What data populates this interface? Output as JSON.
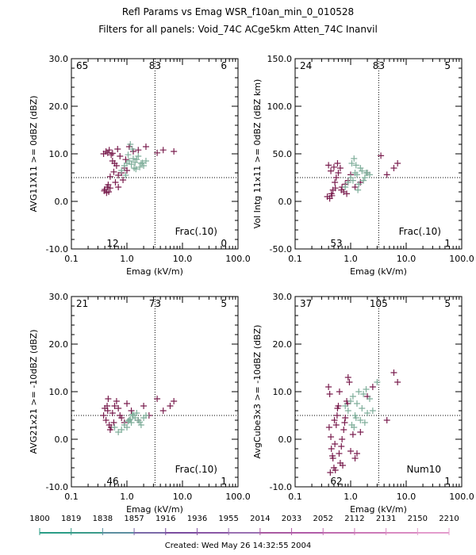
{
  "header": {
    "title": "Refl Params vs Emag   WSR_f10an_min_0_010528",
    "subtitle": "Filters for all panels:  Void_74C ACge5km Atten_74C Inanvil"
  },
  "footer": {
    "created": "Created: Wed May 26 14:32:55 2004"
  },
  "colors": {
    "early": "#7a1f4f",
    "late": "#7fae9a"
  },
  "timebar": {
    "ticks": [
      "1800",
      "1819",
      "1838",
      "1857",
      "1916",
      "1936",
      "1955",
      "2014",
      "2033",
      "2052",
      "2112",
      "2131",
      "2150",
      "2210"
    ],
    "colors": [
      "#2a9d86",
      "#3a9b8a",
      "#5c8fa0",
      "#7b6aa8",
      "#7b4da0",
      "#8a57a6",
      "#9a70b2",
      "#a95aa2",
      "#b15ca8",
      "#c06db0",
      "#cc7ab8",
      "#d98bc2",
      "#e39ccd"
    ]
  },
  "chart_data": [
    {
      "type": "scatter",
      "xlabel": "Emag (kV/m)",
      "ylabel": "AVG11X11 >= 0dBZ (dBZ)",
      "xscale": "log",
      "xlim": [
        0.1,
        100.0
      ],
      "ylim": [
        -10,
        30
      ],
      "xticks": [
        "0.1",
        "1.0",
        "10.0",
        "100.0"
      ],
      "yticks": [
        "-10.0",
        "0.0",
        "10.0",
        "20.0",
        "30.0"
      ],
      "ref_x": 3.2,
      "ref_y": 5,
      "quadrant_counts": {
        "top_left": "65",
        "top_mid": "83",
        "top_right": "6",
        "bottom_left": "12",
        "bottom_right": "0"
      },
      "label": "Frac(.10)",
      "series": [
        {
          "color": "early",
          "x": [
            0.38,
            0.42,
            0.45,
            0.48,
            0.52,
            0.55,
            0.4,
            0.44,
            0.47,
            0.5,
            0.62,
            0.7,
            0.8,
            0.9,
            1.1,
            1.3,
            1.6,
            0.58,
            0.65,
            0.75,
            0.6,
            0.7,
            0.85,
            1.0,
            0.39,
            0.43,
            0.46,
            0.5,
            0.55,
            0.68,
            0.95,
            2.2,
            3.5,
            4.5,
            7.0
          ],
          "y": [
            10,
            10.5,
            10.2,
            10.8,
            9.8,
            10.1,
            2.5,
            3.0,
            2.0,
            2.8,
            4.0,
            5.5,
            6.0,
            7.0,
            11.5,
            10.5,
            10.8,
            6.2,
            7.5,
            9.5,
            8.0,
            3.0,
            4.5,
            6.5,
            2.2,
            1.8,
            3.5,
            5.2,
            8.5,
            11.0,
            8.8,
            11.5,
            10.2,
            10.8,
            10.5
          ]
        },
        {
          "color": "late",
          "x": [
            0.9,
            1.0,
            1.1,
            1.2,
            1.3,
            1.4,
            1.5,
            1.6,
            1.8,
            2.0,
            2.2,
            0.8,
            0.95,
            1.05,
            1.15,
            1.25,
            1.7,
            1.9,
            1.35,
            1.45
          ],
          "y": [
            7.5,
            8.0,
            8.5,
            7.8,
            9.0,
            8.2,
            8.8,
            9.5,
            8.0,
            7.5,
            8.5,
            6.5,
            5.5,
            9.8,
            12.0,
            11.0,
            7.2,
            8.1,
            7.0,
            6.8
          ]
        }
      ]
    },
    {
      "type": "scatter",
      "xlabel": "Emag (kV/m)",
      "ylabel": "Vol Intg 11x11 >= 0dBZ (dBZ km)",
      "xscale": "log",
      "xlim": [
        0.1,
        100.0
      ],
      "ylim": [
        -50,
        150
      ],
      "xticks": [
        "0.1",
        "1.0",
        "10.0",
        "100.0"
      ],
      "yticks": [
        "-50.0",
        "0.0",
        "50.0",
        "100.0",
        "150.0"
      ],
      "ref_x": 3.2,
      "ref_y": 25,
      "quadrant_counts": {
        "top_left": "24",
        "top_mid": "83",
        "top_right": "5",
        "bottom_left": "53",
        "bottom_right": "1"
      },
      "label": "Frac(.10)",
      "series": [
        {
          "color": "early",
          "x": [
            0.38,
            0.42,
            0.45,
            0.48,
            0.52,
            0.55,
            0.6,
            0.65,
            0.7,
            0.75,
            0.8,
            0.9,
            1.0,
            0.4,
            0.44,
            0.5,
            0.58,
            0.68,
            0.85,
            1.2,
            1.5,
            2.0,
            3.5,
            4.5,
            6.0,
            7.0,
            0.46,
            0.53
          ],
          "y": [
            5,
            3,
            8,
            12,
            20,
            25,
            30,
            35,
            15,
            10,
            18,
            22,
            28,
            38,
            32,
            36,
            40,
            12,
            8,
            15,
            20,
            30,
            48,
            28,
            35,
            40,
            6,
            14
          ]
        },
        {
          "color": "late",
          "x": [
            0.9,
            1.0,
            1.1,
            1.2,
            1.3,
            1.4,
            1.5,
            1.6,
            1.8,
            2.0,
            2.2,
            0.8,
            1.05,
            1.15,
            1.25,
            1.7,
            1.9,
            1.35
          ],
          "y": [
            20,
            25,
            22,
            30,
            28,
            18,
            35,
            32,
            25,
            30,
            28,
            15,
            40,
            45,
            38,
            22,
            30,
            12
          ]
        }
      ]
    },
    {
      "type": "scatter",
      "xlabel": "Emag (kV/m)",
      "ylabel": "AVG21x21 >= -10dBZ (dBZ)",
      "xscale": "log",
      "xlim": [
        0.1,
        100.0
      ],
      "ylim": [
        -10,
        30
      ],
      "xticks": [
        "0.1",
        "1.0",
        "10.0",
        "100.0"
      ],
      "yticks": [
        "-10.0",
        "0.0",
        "10.0",
        "20.0",
        "30.0"
      ],
      "ref_x": 3.2,
      "ref_y": 5,
      "quadrant_counts": {
        "top_left": "21",
        "top_mid": "73",
        "top_right": "5",
        "bottom_left": "46",
        "bottom_right": "1"
      },
      "label": "Frac(.10)",
      "series": [
        {
          "color": "early",
          "x": [
            0.38,
            0.42,
            0.45,
            0.48,
            0.52,
            0.55,
            0.6,
            0.65,
            0.7,
            0.8,
            0.9,
            1.0,
            0.4,
            0.44,
            0.5,
            0.58,
            0.75,
            1.2,
            1.6,
            2.0,
            2.5,
            3.5,
            4.5,
            6.0,
            7.0,
            0.46
          ],
          "y": [
            5.0,
            4.0,
            6.0,
            3.0,
            2.5,
            5.5,
            7.0,
            8.0,
            6.5,
            4.5,
            3.5,
            7.5,
            6.5,
            7.0,
            2.0,
            3.5,
            5.0,
            6.0,
            4.0,
            7.0,
            5.0,
            8.5,
            6.0,
            7.0,
            8.0,
            8.5
          ]
        },
        {
          "color": "late",
          "x": [
            0.9,
            1.0,
            1.1,
            1.2,
            1.3,
            1.4,
            1.5,
            1.6,
            1.8,
            2.0,
            2.2,
            0.8,
            0.7,
            0.6,
            1.05,
            1.15,
            1.25,
            1.7
          ],
          "y": [
            3.0,
            2.5,
            4.0,
            3.5,
            5.0,
            4.5,
            5.5,
            4.0,
            3.0,
            4.5,
            5.0,
            2.0,
            1.5,
            2.5,
            3.8,
            4.2,
            5.2,
            3.6
          ]
        }
      ]
    },
    {
      "type": "scatter",
      "xlabel": "Emag (kV/m)",
      "ylabel": "AvgCube3x3 >= -10dBZ (dBZ)",
      "xscale": "log",
      "xlim": [
        0.1,
        100.0
      ],
      "ylim": [
        -10,
        30
      ],
      "xticks": [
        "0.1",
        "1.0",
        "10.0",
        "100.0"
      ],
      "yticks": [
        "-10.0",
        "0.0",
        "10.0",
        "20.0",
        "30.0"
      ],
      "ref_x": 3.2,
      "ref_y": 5,
      "quadrant_counts": {
        "top_left": "37",
        "top_mid": "105",
        "top_right": "5",
        "bottom_left": "62",
        "bottom_right": "1"
      },
      "label": "Num10",
      "series": [
        {
          "color": "early",
          "x": [
            0.4,
            0.42,
            0.45,
            0.48,
            0.5,
            0.52,
            0.55,
            0.58,
            0.6,
            0.62,
            0.65,
            0.7,
            0.75,
            0.8,
            0.85,
            0.9,
            0.95,
            1.0,
            1.1,
            1.2,
            0.41,
            0.44,
            0.47,
            0.53,
            0.57,
            0.63,
            0.68,
            0.72,
            0.78,
            0.88,
            1.3,
            1.5,
            2.0,
            2.5,
            4.5,
            6.0,
            7.0,
            0.43,
            0.51
          ],
          "y": [
            11.0,
            9.5,
            -2.0,
            -4.0,
            -6.0,
            -1.0,
            3.0,
            6.5,
            7.0,
            -3.0,
            -5.0,
            0.0,
            2.0,
            4.5,
            8.0,
            13.0,
            12.0,
            -2.5,
            1.0,
            -4.0,
            2.5,
            0.5,
            -3.5,
            -6.5,
            5.0,
            10.0,
            -1.5,
            -5.5,
            3.5,
            7.5,
            -3.0,
            1.5,
            9.0,
            11.0,
            4.0,
            14.0,
            12.0,
            -7.0,
            4.0
          ]
        },
        {
          "color": "late",
          "x": [
            0.9,
            1.0,
            1.1,
            1.2,
            1.3,
            1.4,
            1.5,
            1.6,
            1.8,
            2.0,
            2.2,
            2.5,
            0.8,
            1.05,
            1.15,
            1.25,
            1.7,
            1.9,
            3.0
          ],
          "y": [
            6.0,
            8.0,
            9.0,
            5.0,
            7.5,
            10.0,
            4.0,
            6.5,
            3.5,
            5.5,
            8.5,
            6.0,
            7.0,
            3.0,
            2.5,
            4.5,
            9.5,
            10.5,
            12.0
          ]
        }
      ]
    }
  ]
}
